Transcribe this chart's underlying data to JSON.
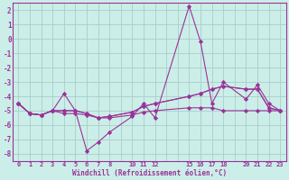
{
  "xlabel": "Windchill (Refroidissement éolien,°C)",
  "background_color": "#cceee8",
  "grid_color": "#aacccc",
  "line_color": "#993399",
  "ylim": [
    -8.5,
    2.5
  ],
  "xlim": [
    -0.5,
    23.5
  ],
  "yticks": [
    -8,
    -7,
    -6,
    -5,
    -4,
    -3,
    -2,
    -1,
    0,
    1,
    2
  ],
  "xtick_positions": [
    0,
    1,
    2,
    3,
    4,
    5,
    6,
    7,
    8,
    9,
    10,
    11,
    12,
    13,
    14,
    15,
    16,
    17,
    18,
    19,
    20,
    21,
    22,
    23
  ],
  "xtick_labels": [
    "0",
    "1",
    "2",
    "3",
    "4",
    "5",
    "6",
    "7",
    "8",
    "",
    "10",
    "11",
    "12",
    "",
    "",
    "15",
    "16",
    "17",
    "18",
    "",
    "20",
    "21",
    "22",
    "23"
  ],
  "series": [
    {
      "x": [
        0,
        1,
        2,
        3,
        4,
        5,
        6,
        7,
        8,
        10,
        11,
        12,
        15,
        16,
        17,
        18,
        20,
        21,
        22,
        23
      ],
      "y": [
        -4.5,
        -5.2,
        -5.3,
        -5.0,
        -3.8,
        -5.0,
        -7.8,
        -7.2,
        -6.5,
        -5.4,
        -4.5,
        -5.5,
        2.3,
        -0.2,
        -4.5,
        -3.0,
        -4.2,
        -3.2,
        -4.5,
        -5.0
      ]
    },
    {
      "x": [
        0,
        1,
        2,
        3,
        4,
        5,
        6,
        7,
        8,
        10,
        11,
        12,
        15,
        16,
        17,
        18,
        20,
        21,
        22,
        23
      ],
      "y": [
        -4.5,
        -5.2,
        -5.3,
        -5.0,
        -5.0,
        -5.0,
        -5.2,
        -5.5,
        -5.4,
        -5.1,
        -4.7,
        -4.5,
        -4.0,
        -3.8,
        -3.5,
        -3.3,
        -3.5,
        -3.5,
        -4.8,
        -5.0
      ]
    },
    {
      "x": [
        0,
        1,
        2,
        3,
        4,
        5,
        6,
        7,
        8,
        10,
        11,
        12,
        15,
        16,
        17,
        18,
        20,
        21,
        22,
        23
      ],
      "y": [
        -4.5,
        -5.2,
        -5.3,
        -5.0,
        -5.0,
        -5.0,
        -5.2,
        -5.5,
        -5.4,
        -5.1,
        -4.7,
        -4.5,
        -4.0,
        -3.8,
        -3.5,
        -3.3,
        -3.5,
        -3.5,
        -4.8,
        -5.0
      ]
    },
    {
      "x": [
        0,
        1,
        2,
        3,
        4,
        5,
        6,
        7,
        8,
        10,
        11,
        12,
        15,
        16,
        17,
        18,
        20,
        21,
        22,
        23
      ],
      "y": [
        -4.5,
        -5.2,
        -5.3,
        -5.0,
        -5.2,
        -5.2,
        -5.3,
        -5.5,
        -5.5,
        -5.3,
        -5.1,
        -5.0,
        -4.8,
        -4.8,
        -4.8,
        -5.0,
        -5.0,
        -5.0,
        -5.0,
        -5.0
      ]
    }
  ]
}
